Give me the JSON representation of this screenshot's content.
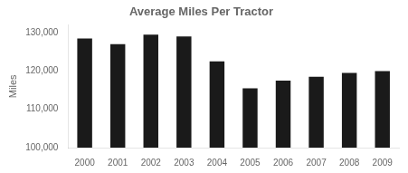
{
  "chart_data": {
    "type": "bar",
    "title": "Average Miles Per Tractor",
    "ylabel": "Miles",
    "categories": [
      "2000",
      "2001",
      "2002",
      "2003",
      "2004",
      "2005",
      "2006",
      "2007",
      "2008",
      "2009"
    ],
    "values": [
      128500,
      127000,
      129500,
      129000,
      122500,
      115500,
      117500,
      118500,
      119500,
      120000
    ],
    "color": "#1a1a1a",
    "ylim": [
      100000,
      132000
    ],
    "yticks": [
      {
        "value": 100000,
        "label": "100,000"
      },
      {
        "value": 110000,
        "label": "110,000"
      },
      {
        "value": 120000,
        "label": "120,000"
      },
      {
        "value": 130000,
        "label": "130,000"
      }
    ],
    "grid": false
  }
}
